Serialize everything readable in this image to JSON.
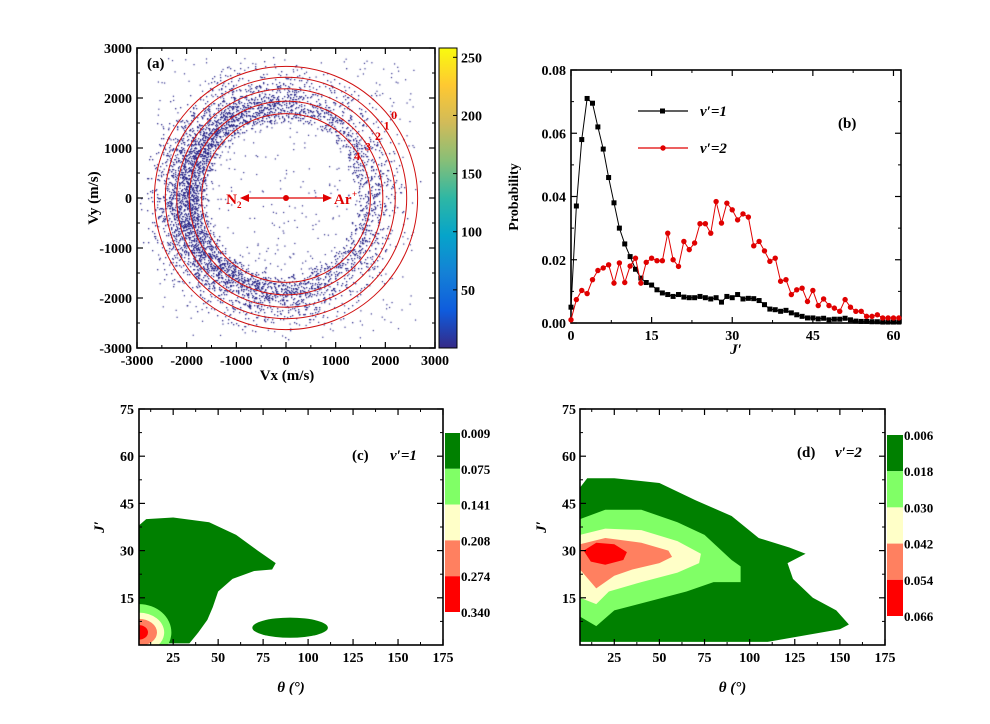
{
  "chart_data": [
    {
      "panel": "(a)",
      "type": "heatmap",
      "xlabel": "Vx (m/s)",
      "ylabel": "Vy (m/s)",
      "xlim": [
        -3000,
        3000
      ],
      "ylim": [
        -3000,
        3000
      ],
      "xticks": [
        "-3000",
        "-2000",
        "-1000",
        "0",
        "1000",
        "2000",
        "3000"
      ],
      "yticks": [
        "-3000",
        "-2000",
        "-1000",
        "0",
        "1000",
        "2000",
        "3000"
      ],
      "colorbar": {
        "range": [
          0,
          258
        ],
        "ticks": [
          "50",
          "100",
          "150",
          "200",
          "250"
        ],
        "colormap": "parula"
      },
      "rings": [
        {
          "label": "0",
          "radius": 2650
        },
        {
          "label": "1",
          "radius": 2430
        },
        {
          "label": "2",
          "radius": 2200
        },
        {
          "label": "3",
          "radius": 1950
        },
        {
          "label": "4",
          "radius": 1700
        }
      ],
      "annotations": {
        "left_base": "N",
        "left_sub": "2",
        "right_base": "Ar",
        "right_sup": "+"
      },
      "ring_color": "#d01010"
    },
    {
      "panel": "(b)",
      "type": "line",
      "xlabel": "J′",
      "ylabel": "Probability",
      "xlim": [
        0,
        61.4
      ],
      "ylim": [
        0,
        0.08
      ],
      "xticks": [
        "0",
        "15",
        "30",
        "45",
        "60"
      ],
      "yticks": [
        "0.00",
        "0.02",
        "0.04",
        "0.06",
        "0.08"
      ],
      "legend_position": "top-center",
      "series": [
        {
          "name": "v′=1",
          "color": "#000000",
          "marker": "square",
          "x": [
            0,
            1,
            2,
            3,
            4,
            5,
            6,
            7,
            8,
            9,
            10,
            11,
            12,
            13,
            14,
            15,
            16,
            17,
            18,
            19,
            20,
            21,
            22,
            23,
            24,
            25,
            26,
            27,
            28,
            29,
            30,
            31,
            32,
            33,
            34,
            35,
            36,
            37,
            38,
            39,
            40,
            41,
            42,
            43,
            44,
            45,
            46,
            47,
            48,
            49,
            50,
            51,
            52,
            53,
            54,
            55,
            56,
            57,
            58,
            59,
            60,
            61
          ],
          "values": [
            0.005,
            0.037,
            0.058,
            0.071,
            0.0695,
            0.062,
            0.055,
            0.046,
            0.038,
            0.03,
            0.025,
            0.021,
            0.017,
            0.0142,
            0.0128,
            0.012,
            0.0105,
            0.0095,
            0.009,
            0.0084,
            0.009,
            0.0082,
            0.008,
            0.008,
            0.0084,
            0.008,
            0.0076,
            0.008,
            0.0066,
            0.0084,
            0.008,
            0.009,
            0.0076,
            0.0078,
            0.0077,
            0.0071,
            0.0058,
            0.0044,
            0.0042,
            0.0037,
            0.004,
            0.0032,
            0.0026,
            0.0021,
            0.0016,
            0.0016,
            0.0013,
            0.0015,
            0.001,
            0.0012,
            0.0012,
            0.0015,
            0.001,
            0.0006,
            0.0005,
            0.0005,
            0.0004,
            0.0004,
            0.0003,
            0.0003,
            0.0003,
            0.0003
          ]
        },
        {
          "name": "v′=2",
          "color": "#e00000",
          "marker": "circle",
          "x": [
            0,
            1,
            2,
            3,
            4,
            5,
            6,
            7,
            8,
            9,
            10,
            11,
            12,
            13,
            14,
            15,
            16,
            17,
            18,
            19,
            20,
            21,
            22,
            23,
            24,
            25,
            26,
            27,
            28,
            29,
            30,
            31,
            32,
            33,
            34,
            35,
            36,
            37,
            38,
            39,
            40,
            41,
            42,
            43,
            44,
            45,
            46,
            47,
            48,
            49,
            50,
            51,
            52,
            53,
            54,
            55,
            56,
            57,
            58,
            59,
            60,
            61
          ],
          "values": [
            0.001,
            0.0074,
            0.0103,
            0.0093,
            0.0137,
            0.0166,
            0.0174,
            0.0184,
            0.0126,
            0.019,
            0.0128,
            0.018,
            0.0205,
            0.0126,
            0.0192,
            0.0205,
            0.0197,
            0.0197,
            0.0284,
            0.02,
            0.0179,
            0.0258,
            0.0232,
            0.0253,
            0.0314,
            0.0314,
            0.0284,
            0.0384,
            0.0316,
            0.0379,
            0.0358,
            0.0326,
            0.0345,
            0.0335,
            0.0244,
            0.0258,
            0.0228,
            0.0195,
            0.0205,
            0.0132,
            0.0137,
            0.009,
            0.0105,
            0.011,
            0.0068,
            0.0103,
            0.0055,
            0.0076,
            0.0055,
            0.0047,
            0.0037,
            0.0074,
            0.005,
            0.0037,
            0.0037,
            0.0021,
            0.0021,
            0.0026,
            0.0016,
            0.0016,
            0.0016,
            0.0016
          ]
        }
      ]
    },
    {
      "panel": "(c)",
      "title": "v′=1",
      "type": "heatmap",
      "xlabel": "θ (°)",
      "ylabel": "J′",
      "xlim": [
        6,
        175
      ],
      "ylim": [
        0,
        75
      ],
      "xticks": [
        "25",
        "50",
        "75",
        "100",
        "125",
        "150",
        "175"
      ],
      "yticks": [
        "15",
        "30",
        "45",
        "60",
        "75"
      ],
      "colorbar_levels": [
        "0.009",
        "0.075",
        "0.141",
        "0.208",
        "0.274",
        "0.340"
      ],
      "level_colors": [
        "#008000",
        "#80ff66",
        "#ffffc8",
        "#ff8060",
        "#ff0000"
      ],
      "contours": [
        {
          "level": 0,
          "polygon": [
            [
              6,
              38
            ],
            [
              10,
              40
            ],
            [
              25,
              40.5
            ],
            [
              45,
              39
            ],
            [
              60,
              35
            ],
            [
              72,
              30
            ],
            [
              82,
              26
            ],
            [
              80,
              24
            ],
            [
              70,
              23.5
            ],
            [
              58,
              21
            ],
            [
              50,
              17
            ],
            [
              47,
              12
            ],
            [
              44,
              8
            ],
            [
              39,
              4
            ],
            [
              34,
              0.5
            ],
            [
              6,
              0.5
            ]
          ]
        },
        {
          "level": 0,
          "ellipse": {
            "cx": 90,
            "cy": 5.5,
            "rx": 21,
            "ry": 3.2
          }
        },
        {
          "level": 1,
          "ellipse": {
            "cx": 6,
            "cy": 4,
            "rx": 18,
            "ry": 9
          }
        },
        {
          "level": 2,
          "ellipse": {
            "cx": 6,
            "cy": 4,
            "rx": 14,
            "ry": 6.3
          }
        },
        {
          "level": 3,
          "ellipse": {
            "cx": 6,
            "cy": 4,
            "rx": 10,
            "ry": 4.3
          }
        },
        {
          "level": 4,
          "ellipse": {
            "cx": 6,
            "cy": 4,
            "rx": 5,
            "ry": 2.3
          }
        }
      ]
    },
    {
      "panel": "(d)",
      "title": "v′=2",
      "type": "heatmap",
      "xlabel": "θ (°)",
      "ylabel": "J′",
      "xlim": [
        6,
        175
      ],
      "ylim": [
        0,
        75
      ],
      "xticks": [
        "25",
        "50",
        "75",
        "100",
        "125",
        "150",
        "175"
      ],
      "yticks": [
        "15",
        "30",
        "45",
        "60",
        "75"
      ],
      "colorbar_levels": [
        "0.006",
        "0.018",
        "0.030",
        "0.042",
        "0.054",
        "0.066"
      ],
      "level_colors": [
        "#008000",
        "#80ff66",
        "#ffffc8",
        "#ff8060",
        "#ff0000"
      ],
      "contours": [
        {
          "level": 0,
          "polygon": [
            [
              6,
              50
            ],
            [
              10,
              53
            ],
            [
              25,
              53
            ],
            [
              50,
              51.5
            ],
            [
              70,
              46
            ],
            [
              90,
              41
            ],
            [
              105,
              34
            ],
            [
              122,
              31
            ],
            [
              131,
              29
            ],
            [
              121,
              26
            ],
            [
              124,
              21
            ],
            [
              135,
              15
            ],
            [
              148,
              11
            ],
            [
              155,
              6.5
            ],
            [
              150,
              5
            ],
            [
              110,
              1
            ],
            [
              6,
              1
            ]
          ]
        },
        {
          "level": 1,
          "polygon": [
            [
              6,
              40
            ],
            [
              20,
              43
            ],
            [
              40,
              43
            ],
            [
              60,
              39
            ],
            [
              75,
              35
            ],
            [
              90,
              27
            ],
            [
              95,
              25
            ],
            [
              95,
              20
            ],
            [
              80,
              20
            ],
            [
              65,
              17
            ],
            [
              45,
              14
            ],
            [
              25,
              11
            ],
            [
              15,
              6
            ],
            [
              6,
              9
            ]
          ]
        },
        {
          "level": 2,
          "polygon": [
            [
              6,
              35
            ],
            [
              20,
              37
            ],
            [
              40,
              36.5
            ],
            [
              60,
              33
            ],
            [
              73,
              29
            ],
            [
              72,
              26
            ],
            [
              60,
              23
            ],
            [
              40,
              20
            ],
            [
              22,
              17
            ],
            [
              15,
              13
            ],
            [
              6,
              15
            ]
          ]
        },
        {
          "level": 3,
          "polygon": [
            [
              6,
              32
            ],
            [
              20,
              34
            ],
            [
              40,
              32.5
            ],
            [
              55,
              30
            ],
            [
              57,
              28
            ],
            [
              50,
              26
            ],
            [
              35,
              24
            ],
            [
              25,
              22
            ],
            [
              15,
              18
            ],
            [
              6,
              24
            ]
          ]
        },
        {
          "level": 4,
          "polygon": [
            [
              8,
              30
            ],
            [
              15,
              32.5
            ],
            [
              25,
              32
            ],
            [
              32,
              29.5
            ],
            [
              30,
              27
            ],
            [
              20,
              25.5
            ],
            [
              12,
              26.5
            ]
          ]
        }
      ]
    }
  ]
}
